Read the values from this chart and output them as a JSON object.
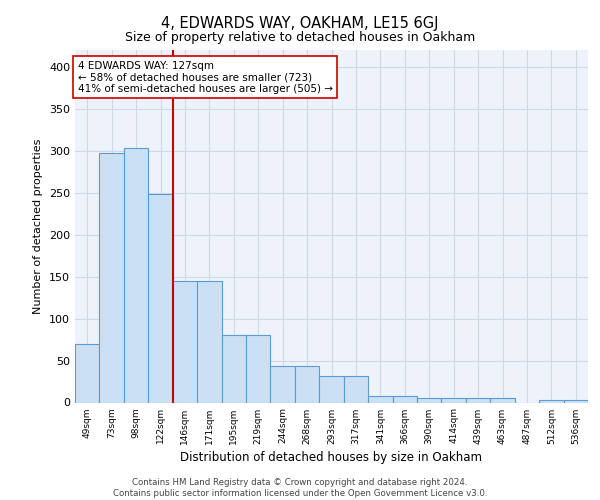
{
  "title": "4, EDWARDS WAY, OAKHAM, LE15 6GJ",
  "subtitle": "Size of property relative to detached houses in Oakham",
  "xlabel": "Distribution of detached houses by size in Oakham",
  "ylabel": "Number of detached properties",
  "bar_labels": [
    "49sqm",
    "73sqm",
    "98sqm",
    "122sqm",
    "146sqm",
    "171sqm",
    "195sqm",
    "219sqm",
    "244sqm",
    "268sqm",
    "293sqm",
    "317sqm",
    "341sqm",
    "366sqm",
    "390sqm",
    "414sqm",
    "439sqm",
    "463sqm",
    "487sqm",
    "512sqm",
    "536sqm"
  ],
  "bar_heights": [
    70,
    297,
    303,
    249,
    145,
    145,
    81,
    81,
    43,
    43,
    32,
    32,
    8,
    8,
    5,
    5,
    5,
    5,
    0,
    3,
    3
  ],
  "bar_color": "#cce0f5",
  "bar_edge_color": "#5b9bd5",
  "vline_x": 3.5,
  "vline_color": "#cc0000",
  "annotation_text": "4 EDWARDS WAY: 127sqm\n← 58% of detached houses are smaller (723)\n41% of semi-detached houses are larger (505) →",
  "annotation_box_color": "#ffffff",
  "annotation_box_edge_color": "#cc0000",
  "ylim": [
    0,
    420
  ],
  "yticks": [
    0,
    50,
    100,
    150,
    200,
    250,
    300,
    350,
    400
  ],
  "grid_color": "#d0d8e8",
  "background_color": "#eef2fa",
  "footer_line1": "Contains HM Land Registry data © Crown copyright and database right 2024.",
  "footer_line2": "Contains public sector information licensed under the Open Government Licence v3.0."
}
